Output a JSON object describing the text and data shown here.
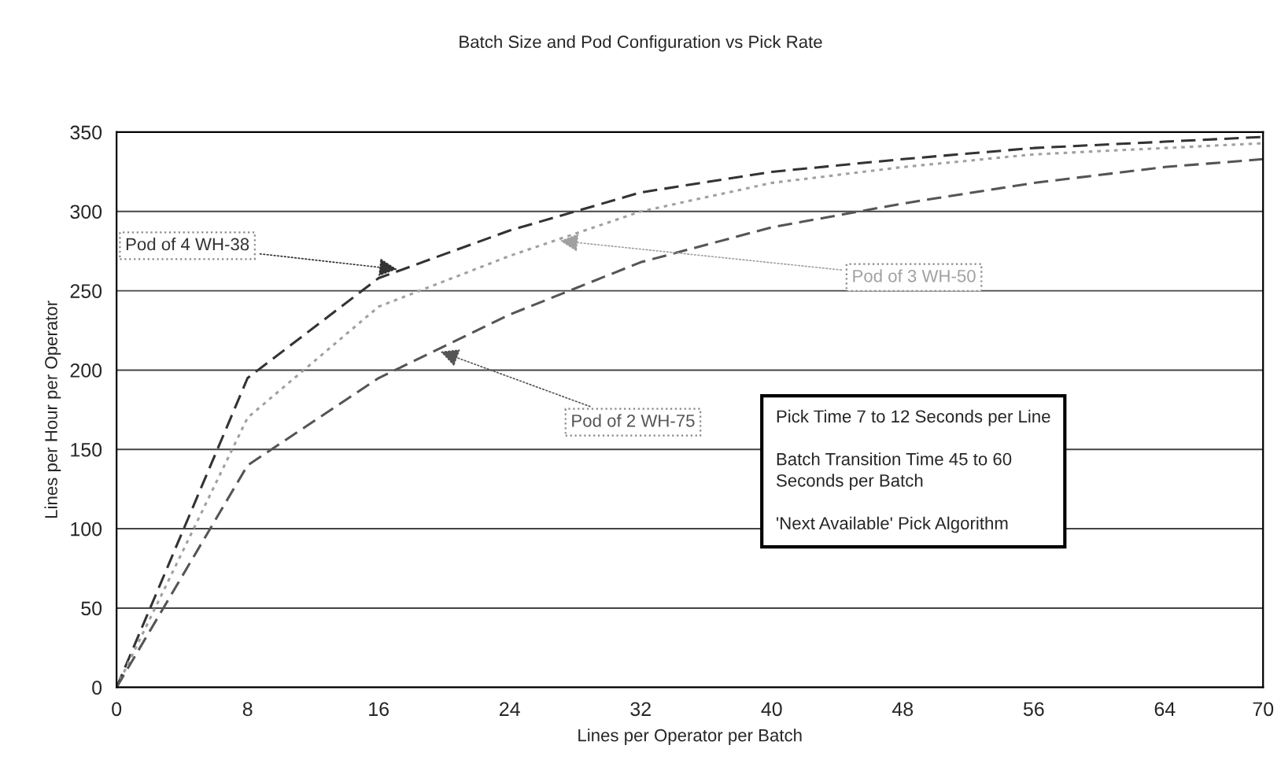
{
  "chart_data": {
    "type": "line",
    "title": "Batch Size and Pod Configuration vs Pick Rate",
    "xlabel": "Lines per Operator per Batch",
    "ylabel": "Lines per Hour per Operator",
    "x": [
      0,
      8,
      16,
      24,
      32,
      40,
      48,
      56,
      64,
      70
    ],
    "series": [
      {
        "name": "Pod of 4 WH-38",
        "color": "#333333",
        "line_style": "dashed",
        "values": [
          0,
          195,
          258,
          288,
          312,
          325,
          333,
          340,
          344,
          347
        ]
      },
      {
        "name": "Pod of 3 WH-50",
        "color": "#a0a0a0",
        "line_style": "dotted",
        "values": [
          0,
          170,
          240,
          272,
          300,
          318,
          328,
          336,
          340,
          343
        ]
      },
      {
        "name": "Pod of 2 WH-75",
        "color": "#555555",
        "line_style": "dashed",
        "values": [
          0,
          140,
          195,
          235,
          268,
          290,
          305,
          318,
          328,
          333
        ]
      }
    ],
    "annotations": [
      "Pick Time 7 to 12 Seconds per Line\n\nBatch Transition Time 45 to 60\nSeconds per Batch\n\n'Next Available' Pick Algorithm"
    ],
    "xlim": [
      0,
      70
    ],
    "xticks": [
      0,
      8,
      16,
      24,
      32,
      40,
      48,
      56,
      64,
      70
    ],
    "ylim": [
      0,
      350
    ],
    "yticks": [
      0,
      50,
      100,
      150,
      200,
      250,
      300,
      350
    ],
    "grid": "y",
    "legend": false,
    "marker": "none"
  }
}
